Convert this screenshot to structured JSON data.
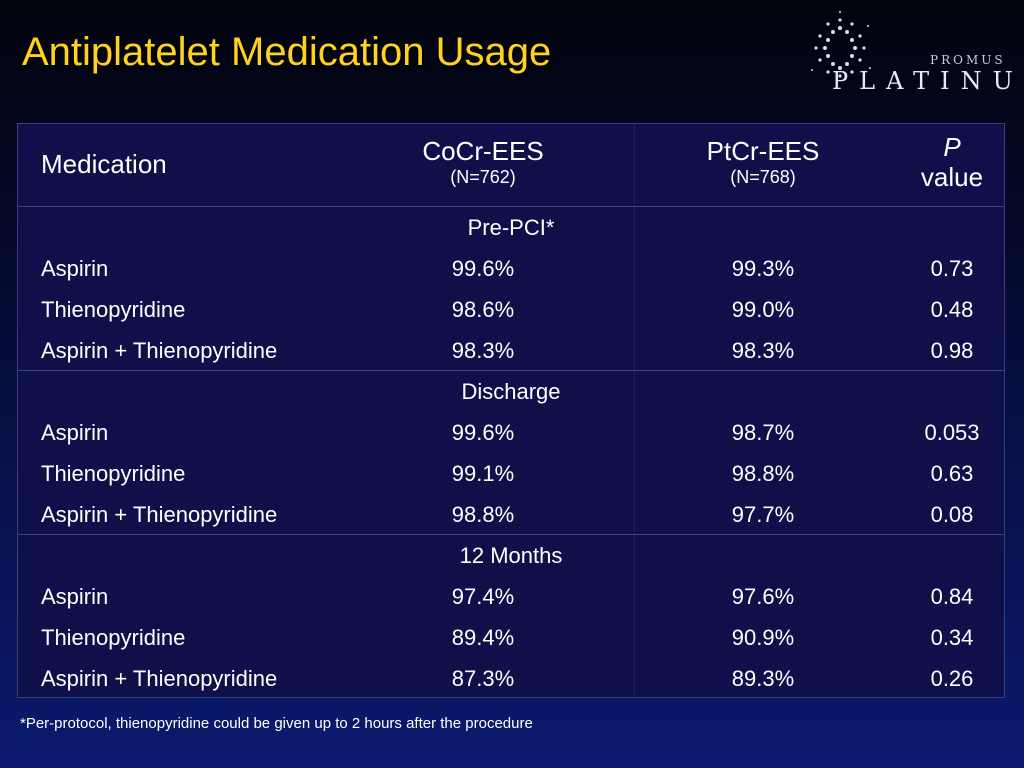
{
  "title": "Antiplatelet Medication Usage",
  "logo": {
    "sub": "PROMUS",
    "main": "PLATINUM"
  },
  "header": {
    "medication": "Medication",
    "col1": {
      "name": "CoCr-EES",
      "n": "(N=762)"
    },
    "col2": {
      "name": "PtCr-EES",
      "n": "(N=768)"
    },
    "col3": {
      "name": "P",
      "sub": "value"
    }
  },
  "sections": [
    {
      "label": "Pre-PCI*",
      "rows": [
        {
          "label": "Aspirin",
          "v1": "99.6%",
          "v2": "99.3%",
          "p": "0.73"
        },
        {
          "label": "Thienopyridine",
          "v1": "98.6%",
          "v2": "99.0%",
          "p": "0.48"
        },
        {
          "label": "Aspirin + Thienopyridine",
          "v1": "98.3%",
          "v2": "98.3%",
          "p": "0.98"
        }
      ]
    },
    {
      "label": "Discharge",
      "rows": [
        {
          "label": "Aspirin",
          "v1": "99.6%",
          "v2": "98.7%",
          "p": "0.053"
        },
        {
          "label": "Thienopyridine",
          "v1": "99.1%",
          "v2": "98.8%",
          "p": "0.63"
        },
        {
          "label": "Aspirin + Thienopyridine",
          "v1": "98.8%",
          "v2": "97.7%",
          "p": "0.08"
        }
      ]
    },
    {
      "label": "12 Months",
      "rows": [
        {
          "label": "Aspirin",
          "v1": "97.4%",
          "v2": "97.6%",
          "p": "0.84"
        },
        {
          "label": "Thienopyridine",
          "v1": "89.4%",
          "v2": "90.9%",
          "p": "0.34"
        },
        {
          "label": "Aspirin + Thienopyridine",
          "v1": "87.3%",
          "v2": "89.3%",
          "p": "0.26"
        }
      ]
    }
  ],
  "footnote": "*Per-protocol, thienopyridine could be given up to 2 hours after the procedure"
}
